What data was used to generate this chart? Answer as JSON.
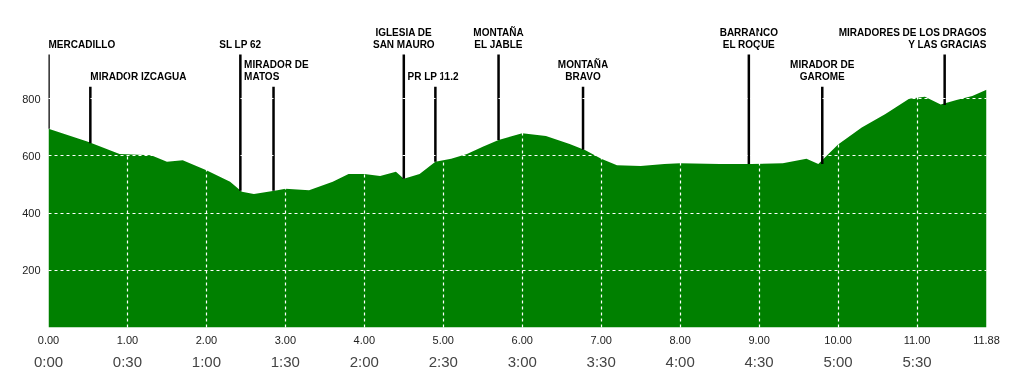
{
  "chart_data": {
    "type": "area",
    "grid": true,
    "x": [
      0,
      0.5,
      0.9,
      1.3,
      1.5,
      1.7,
      2.0,
      2.3,
      2.45,
      2.6,
      2.9,
      3.0,
      3.3,
      3.6,
      3.8,
      4.0,
      4.2,
      4.4,
      4.5,
      4.7,
      4.9,
      5.1,
      5.3,
      5.5,
      5.7,
      6.0,
      6.3,
      6.6,
      6.8,
      7.0,
      7.2,
      7.5,
      7.8,
      8.0,
      8.5,
      8.9,
      9.3,
      9.6,
      9.75,
      10.0,
      10.3,
      10.6,
      10.9,
      11.1,
      11.3,
      11.5,
      11.7,
      11.88
    ],
    "series": [
      {
        "color": "#008000",
        "values": [
          695,
          650,
          607,
          603,
          580,
          585,
          550,
          510,
          475,
          467,
          480,
          485,
          480,
          510,
          537,
          537,
          530,
          545,
          520,
          537,
          580,
          590,
          607,
          632,
          656,
          680,
          670,
          642,
          620,
          590,
          568,
          565,
          572,
          575,
          572,
          572,
          575,
          590,
          572,
          640,
          700,
          747,
          800,
          807,
          780,
          796,
          810,
          832
        ]
      }
    ],
    "xlim": [
      0,
      11.88
    ],
    "xticks": [
      {
        "value": 0,
        "label": "0.00"
      },
      {
        "value": 1,
        "label": "1.00"
      },
      {
        "value": 2,
        "label": "2.00"
      },
      {
        "value": 3,
        "label": "3.00"
      },
      {
        "value": 4,
        "label": "4.00"
      },
      {
        "value": 5,
        "label": "5.00"
      },
      {
        "value": 6,
        "label": "6.00"
      },
      {
        "value": 7,
        "label": "7.00"
      },
      {
        "value": 8,
        "label": "8.00"
      },
      {
        "value": 9,
        "label": "9.00"
      },
      {
        "value": 10,
        "label": "10.00"
      },
      {
        "value": 11,
        "label": "11.00"
      },
      {
        "value": 11.88,
        "label": "11.88"
      }
    ],
    "x2lim": [
      0,
      5.94
    ],
    "x2ticks": [
      {
        "value": 0,
        "label": "0:00"
      },
      {
        "value": 0.5,
        "label": "0:30"
      },
      {
        "value": 1,
        "label": "1:00"
      },
      {
        "value": 1.5,
        "label": "1:30"
      },
      {
        "value": 2,
        "label": "2:00"
      },
      {
        "value": 2.5,
        "label": "2:30"
      },
      {
        "value": 3,
        "label": "3:00"
      },
      {
        "value": 3.5,
        "label": "3:30"
      },
      {
        "value": 4,
        "label": "4:00"
      },
      {
        "value": 4.5,
        "label": "4:30"
      },
      {
        "value": 5,
        "label": "5:00"
      },
      {
        "value": 5.5,
        "label": "5:30"
      }
    ],
    "ylim": [
      0,
      1130
    ],
    "yticks": [
      200,
      400,
      600,
      800
    ],
    "annotations": [
      {
        "text": "MERCADILLO",
        "x": 0,
        "y": 695
      },
      {
        "text": "MIRADOR IZCAGUA",
        "x": 0.53,
        "y": 645
      },
      {
        "text": "SL LP 62",
        "x": 2.43,
        "y": 478
      },
      {
        "text": "MIRADOR DE\nMATOS",
        "x": 2.85,
        "y": 478
      },
      {
        "text": "IGLESIA DE\nSAN MAURO",
        "x": 4.5,
        "y": 520
      },
      {
        "text": "PR LP 11.2",
        "x": 4.9,
        "y": 580
      },
      {
        "text": "MONTAÑA\nEL JABLE",
        "x": 5.7,
        "y": 656
      },
      {
        "text": "MONTAÑA\nBRAVO",
        "x": 6.77,
        "y": 622
      },
      {
        "text": "BARRANCO\nEL ROQUE",
        "x": 8.87,
        "y": 572
      },
      {
        "text": "MIRADOR DE\nGAROME",
        "x": 9.8,
        "y": 572
      },
      {
        "text": "MIRADORES DE LOS DRAGOS\nY LAS GRACIAS",
        "x": 11.35,
        "y": 778
      }
    ]
  }
}
